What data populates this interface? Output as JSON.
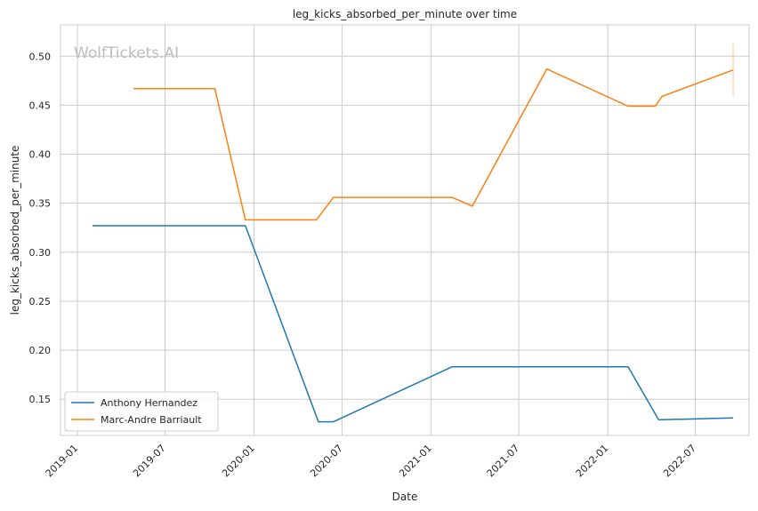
{
  "chart_data": {
    "type": "line",
    "title": "leg_kicks_absorbed_per_minute over time",
    "xlabel": "Date",
    "ylabel": "leg_kicks_absorbed_per_minute",
    "watermark": "WolfTickets.AI",
    "grid": true,
    "legend_position": "lower-left",
    "xlim": [
      "2018-11-27",
      "2022-10-20"
    ],
    "ylim": [
      0.113,
      0.532
    ],
    "x_ticks": [
      "2019-01",
      "2019-07",
      "2020-01",
      "2020-07",
      "2021-01",
      "2021-07",
      "2022-01",
      "2022-07"
    ],
    "y_ticks": [
      "0.15",
      "0.20",
      "0.25",
      "0.30",
      "0.35",
      "0.40",
      "0.45",
      "0.50"
    ],
    "series": [
      {
        "name": "Anthony Hernandez",
        "color": "#1f77b4",
        "points": [
          {
            "x": "2019-02-01",
            "y": 0.327
          },
          {
            "x": "2019-12-14",
            "y": 0.327
          },
          {
            "x": "2020-05-13",
            "y": 0.127
          },
          {
            "x": "2020-06-13",
            "y": 0.127
          },
          {
            "x": "2021-02-13",
            "y": 0.183
          },
          {
            "x": "2022-02-12",
            "y": 0.183
          },
          {
            "x": "2022-04-16",
            "y": 0.129
          },
          {
            "x": "2022-09-17",
            "y": 0.131
          }
        ]
      },
      {
        "name": "Marc-Andre Barriault",
        "color": "#ff7f0e",
        "points": [
          {
            "x": "2019-04-27",
            "y": 0.467
          },
          {
            "x": "2019-07-27",
            "y": 0.467
          },
          {
            "x": "2019-10-12",
            "y": 0.467
          },
          {
            "x": "2019-12-14",
            "y": 0.333
          },
          {
            "x": "2020-05-09",
            "y": 0.333
          },
          {
            "x": "2020-06-13",
            "y": 0.356
          },
          {
            "x": "2021-02-13",
            "y": 0.356
          },
          {
            "x": "2021-03-27",
            "y": 0.347
          },
          {
            "x": "2021-08-28",
            "y": 0.487
          },
          {
            "x": "2022-02-12",
            "y": 0.449
          },
          {
            "x": "2022-04-09",
            "y": 0.449
          },
          {
            "x": "2022-04-23",
            "y": 0.459
          },
          {
            "x": "2022-09-17",
            "y": 0.486
          }
        ],
        "error_bar": {
          "x": "2022-09-17",
          "low": 0.459,
          "high": 0.513
        }
      }
    ]
  }
}
